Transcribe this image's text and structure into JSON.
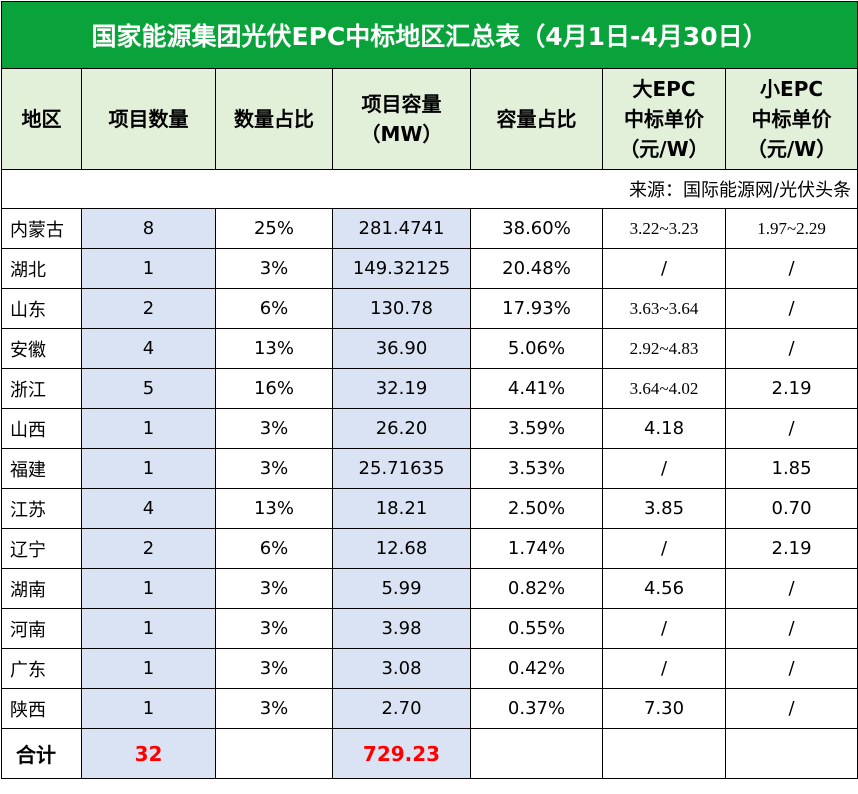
{
  "title": "国家能源集团光伏EPC中标地区汇总表（4月1日-4月30日）",
  "headers": {
    "region": "地区",
    "count": "项目数量",
    "count_pct": "数量占比",
    "capacity_l1": "项目容量",
    "capacity_l2": "（MW）",
    "capacity_pct": "容量占比",
    "big_epc_l1": "大EPC",
    "big_epc_l2": "中标单价",
    "big_epc_l3": "（元/W）",
    "small_epc_l1": "小EPC",
    "small_epc_l2": "中标单价",
    "small_epc_l3": "（元/W）"
  },
  "source": "来源：国际能源网/光伏头条",
  "rows": [
    {
      "region": "内蒙古",
      "count": "8",
      "count_pct": "25%",
      "capacity": "281.4741",
      "capacity_pct": "38.60%",
      "big_epc": "3.22~3.23",
      "small_epc": "1.97~2.29"
    },
    {
      "region": "湖北",
      "count": "1",
      "count_pct": "3%",
      "capacity": "149.32125",
      "capacity_pct": "20.48%",
      "big_epc": "/",
      "small_epc": "/"
    },
    {
      "region": "山东",
      "count": "2",
      "count_pct": "6%",
      "capacity": "130.78",
      "capacity_pct": "17.93%",
      "big_epc": "3.63~3.64",
      "small_epc": "/"
    },
    {
      "region": "安徽",
      "count": "4",
      "count_pct": "13%",
      "capacity": "36.90",
      "capacity_pct": "5.06%",
      "big_epc": "2.92~4.83",
      "small_epc": "/"
    },
    {
      "region": "浙江",
      "count": "5",
      "count_pct": "16%",
      "capacity": "32.19",
      "capacity_pct": "4.41%",
      "big_epc": "3.64~4.02",
      "small_epc": "2.19"
    },
    {
      "region": "山西",
      "count": "1",
      "count_pct": "3%",
      "capacity": "26.20",
      "capacity_pct": "3.59%",
      "big_epc": "4.18",
      "small_epc": "/"
    },
    {
      "region": "福建",
      "count": "1",
      "count_pct": "3%",
      "capacity": "25.71635",
      "capacity_pct": "3.53%",
      "big_epc": "/",
      "small_epc": "1.85"
    },
    {
      "region": "江苏",
      "count": "4",
      "count_pct": "13%",
      "capacity": "18.21",
      "capacity_pct": "2.50%",
      "big_epc": "3.85",
      "small_epc": "0.70"
    },
    {
      "region": "辽宁",
      "count": "2",
      "count_pct": "6%",
      "capacity": "12.68",
      "capacity_pct": "1.74%",
      "big_epc": "/",
      "small_epc": "2.19"
    },
    {
      "region": "湖南",
      "count": "1",
      "count_pct": "3%",
      "capacity": "5.99",
      "capacity_pct": "0.82%",
      "big_epc": "4.56",
      "small_epc": "/"
    },
    {
      "region": "河南",
      "count": "1",
      "count_pct": "3%",
      "capacity": "3.98",
      "capacity_pct": "0.55%",
      "big_epc": "/",
      "small_epc": "/"
    },
    {
      "region": "广东",
      "count": "1",
      "count_pct": "3%",
      "capacity": "3.08",
      "capacity_pct": "0.42%",
      "big_epc": "/",
      "small_epc": "/"
    },
    {
      "region": "陕西",
      "count": "1",
      "count_pct": "3%",
      "capacity": "2.70",
      "capacity_pct": "0.37%",
      "big_epc": "7.30",
      "small_epc": "/"
    }
  ],
  "total": {
    "label": "合计",
    "count": "32",
    "capacity": "729.23"
  },
  "colors": {
    "title_bg": "#0aa33b",
    "header_bg": "#e2efd9",
    "highlight_col_bg": "#dae3f3",
    "total_text": "#ff0000"
  }
}
